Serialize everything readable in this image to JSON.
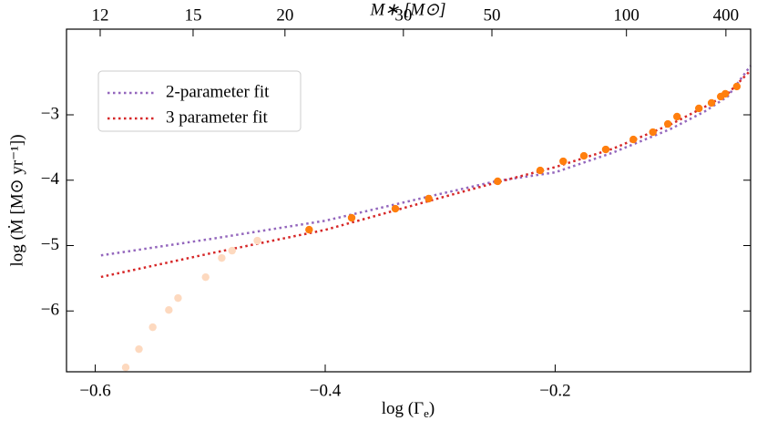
{
  "chart_data": {
    "type": "scatter",
    "xlabel": "log (Γ",
    "xlabel_sub": "e",
    "xlabel_end": ")",
    "ylabel": "log (Ṁ [M⊙ yr⁻¹])",
    "x2label": "M∗ [M⊙]",
    "xlim": [
      -0.625,
      -0.03
    ],
    "ylim": [
      -6.93,
      -1.69
    ],
    "xticks": [
      {
        "value": -0.6,
        "label": "−0.6"
      },
      {
        "value": -0.4,
        "label": "−0.4"
      },
      {
        "value": -0.2,
        "label": "−0.2"
      }
    ],
    "yticks": [
      {
        "value": -6,
        "label": "−6"
      },
      {
        "value": -5,
        "label": "−5"
      },
      {
        "value": -4,
        "label": "−4"
      },
      {
        "value": -3,
        "label": "−3"
      }
    ],
    "x2ticks": [
      {
        "value": -0.5957,
        "label": "12"
      },
      {
        "value": -0.5149,
        "label": "15"
      },
      {
        "value": -0.435,
        "label": "20"
      },
      {
        "value": -0.332,
        "label": "30"
      },
      {
        "value": -0.255,
        "label": "50"
      },
      {
        "value": -0.138,
        "label": "100"
      },
      {
        "value": -0.0515,
        "label": "400"
      }
    ],
    "legend": "upper left",
    "series": [
      {
        "name": "2-parameter fit",
        "style": "dotted",
        "color": "#9467bd",
        "x": [
          -0.595,
          -0.5,
          -0.4,
          -0.3,
          -0.25,
          -0.2,
          -0.15,
          -0.1,
          -0.07,
          -0.05,
          -0.03
        ],
        "values": [
          -5.15,
          -4.9,
          -4.62,
          -4.21,
          -4.01,
          -3.88,
          -3.58,
          -3.22,
          -2.95,
          -2.72,
          -2.25
        ]
      },
      {
        "name": "3 parameter fit",
        "style": "dotted",
        "color": "#d62728",
        "x": [
          -0.595,
          -0.5,
          -0.4,
          -0.3,
          -0.25,
          -0.2,
          -0.15,
          -0.1,
          -0.07,
          -0.05,
          -0.03
        ],
        "values": [
          -5.48,
          -5.12,
          -4.76,
          -4.27,
          -4.03,
          -3.8,
          -3.52,
          -3.15,
          -2.88,
          -2.68,
          -2.32
        ]
      },
      {
        "style": "markers",
        "color": "#fdd9bf",
        "x": [
          -0.5735,
          -0.562,
          -0.55,
          -0.536,
          -0.528,
          -0.504,
          -0.49,
          -0.481,
          -0.459
        ],
        "values": [
          -6.863,
          -6.584,
          -6.249,
          -5.985,
          -5.803,
          -5.483,
          -5.19,
          -5.078,
          -4.925
        ]
      },
      {
        "style": "markers",
        "color": "#ff7f0e",
        "x": [
          -0.414,
          -0.377,
          -0.339,
          -0.31,
          -0.25,
          -0.213,
          -0.193,
          -0.175,
          -0.156,
          -0.132,
          -0.115,
          -0.102,
          -0.094,
          -0.075,
          -0.064,
          -0.056,
          -0.052,
          -0.042
        ],
        "values": [
          -4.757,
          -4.575,
          -4.436,
          -4.282,
          -4.017,
          -3.851,
          -3.711,
          -3.628,
          -3.53,
          -3.377,
          -3.265,
          -3.14,
          -3.028,
          -2.902,
          -2.818,
          -2.721,
          -2.679,
          -2.567
        ]
      }
    ]
  }
}
